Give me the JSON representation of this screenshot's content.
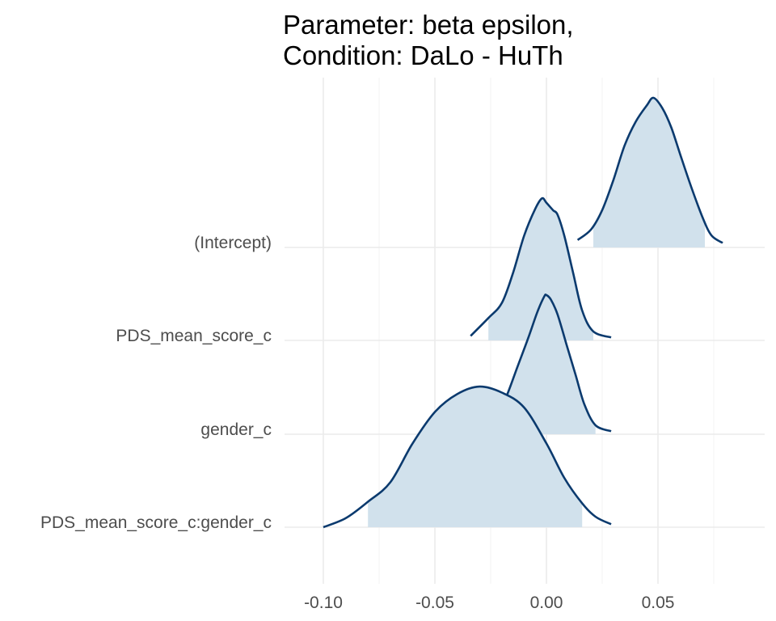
{
  "chart_data": {
    "type": "area",
    "title": "Parameter: beta epsilon,\nCondition: DaLo - HuTh",
    "title_lines": [
      "Parameter: beta epsilon,",
      "Condition: DaLo - HuTh"
    ],
    "xlabel": "",
    "ylabel": "",
    "xlim": [
      -0.1,
      0.1
    ],
    "x_ticks": [
      -0.1,
      -0.05,
      0.0,
      0.05
    ],
    "x_tick_labels": [
      "-0.10",
      "-0.05",
      "0.00",
      "0.05"
    ],
    "grid": true,
    "legend": "none",
    "colors": {
      "fill": "#d1e1ec",
      "line": "#0b3a6e"
    },
    "series": [
      {
        "name": "(Intercept)",
        "interval": [
          0.021,
          0.071
        ],
        "x": [
          0.014,
          0.02,
          0.025,
          0.03,
          0.035,
          0.04,
          0.045,
          0.048,
          0.052,
          0.056,
          0.06,
          0.065,
          0.07,
          0.074,
          0.079
        ],
        "density": [
          0.05,
          0.12,
          0.25,
          0.45,
          0.68,
          0.84,
          0.95,
          1.0,
          0.93,
          0.8,
          0.62,
          0.4,
          0.2,
          0.08,
          0.03
        ]
      },
      {
        "name": "PDS_mean_score_c",
        "interval": [
          -0.026,
          0.021
        ],
        "x": [
          -0.034,
          -0.026,
          -0.02,
          -0.015,
          -0.01,
          -0.005,
          -0.002,
          0.0,
          0.003,
          0.005,
          0.008,
          0.012,
          0.016,
          0.021,
          0.029
        ],
        "density": [
          0.03,
          0.15,
          0.25,
          0.45,
          0.7,
          0.88,
          0.95,
          0.92,
          0.87,
          0.84,
          0.7,
          0.45,
          0.2,
          0.06,
          0.02
        ]
      },
      {
        "name": "gender_c",
        "interval": [
          -0.023,
          0.022
        ],
        "x": [
          -0.031,
          -0.023,
          -0.018,
          -0.013,
          -0.008,
          -0.004,
          -0.001,
          0.0,
          0.002,
          0.005,
          0.009,
          0.013,
          0.017,
          0.022,
          0.029
        ],
        "density": [
          0.03,
          0.1,
          0.25,
          0.45,
          0.65,
          0.82,
          0.92,
          0.93,
          0.9,
          0.8,
          0.6,
          0.4,
          0.2,
          0.06,
          0.02
        ]
      },
      {
        "name": "PDS_mean_score_c:gender_c",
        "interval": [
          -0.08,
          0.016
        ],
        "x": [
          -0.1,
          -0.09,
          -0.08,
          -0.07,
          -0.06,
          -0.05,
          -0.04,
          -0.03,
          -0.02,
          -0.01,
          0.0,
          0.008,
          0.016,
          0.022,
          0.029
        ],
        "density": [
          0.0,
          0.06,
          0.17,
          0.3,
          0.56,
          0.77,
          0.89,
          0.94,
          0.9,
          0.8,
          0.56,
          0.33,
          0.16,
          0.07,
          0.02
        ]
      }
    ]
  }
}
